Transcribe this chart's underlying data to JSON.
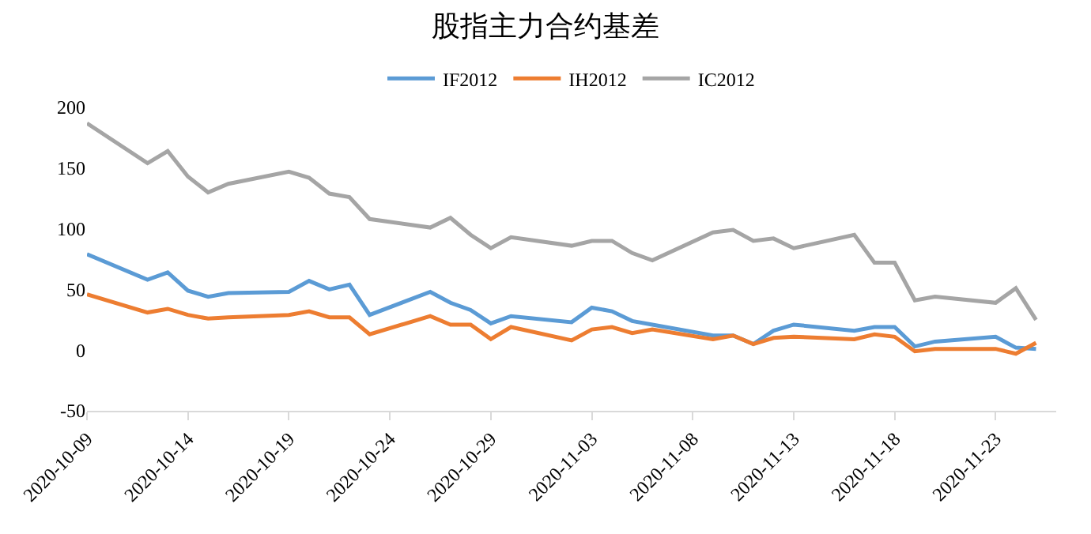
{
  "chart_data": {
    "type": "line",
    "title": "股指主力合约基差",
    "x": [
      "2020-10-09",
      "2020-10-12",
      "2020-10-13",
      "2020-10-14",
      "2020-10-15",
      "2020-10-16",
      "2020-10-19",
      "2020-10-20",
      "2020-10-21",
      "2020-10-22",
      "2020-10-23",
      "2020-10-26",
      "2020-10-27",
      "2020-10-28",
      "2020-10-29",
      "2020-10-30",
      "2020-11-02",
      "2020-11-03",
      "2020-11-04",
      "2020-11-05",
      "2020-11-06",
      "2020-11-09",
      "2020-11-10",
      "2020-11-11",
      "2020-11-12",
      "2020-11-13",
      "2020-11-16",
      "2020-11-17",
      "2020-11-18",
      "2020-11-19",
      "2020-11-20",
      "2020-11-23",
      "2020-11-24",
      "2020-11-25"
    ],
    "series": [
      {
        "name": "IF2012",
        "color": "#5b9bd5",
        "values": [
          79,
          58,
          64,
          49,
          44,
          47,
          48,
          57,
          50,
          54,
          29,
          48,
          39,
          33,
          22,
          28,
          23,
          35,
          32,
          24,
          21,
          12,
          12,
          5,
          16,
          21,
          16,
          19,
          19,
          3,
          7,
          11,
          2,
          1
        ]
      },
      {
        "name": "IH2012",
        "color": "#ed7d31",
        "values": [
          46,
          31,
          34,
          29,
          26,
          27,
          29,
          32,
          27,
          27,
          13,
          28,
          21,
          21,
          9,
          19,
          8,
          17,
          19,
          14,
          17,
          9,
          12,
          5,
          10,
          11,
          9,
          13,
          11,
          -1,
          1,
          1,
          -3,
          6
        ]
      },
      {
        "name": "IC2012",
        "color": "#a5a5a5",
        "values": [
          187,
          154,
          164,
          143,
          130,
          137,
          147,
          142,
          129,
          126,
          108,
          101,
          109,
          95,
          84,
          93,
          86,
          90,
          90,
          80,
          74,
          97,
          99,
          90,
          92,
          84,
          95,
          72,
          72,
          41,
          44,
          39,
          51,
          25
        ]
      }
    ],
    "xlim": [
      "2020-10-09",
      "2020-11-26"
    ],
    "xticks": [
      {
        "value": "2020-10-09",
        "label": "2020-10-09"
      },
      {
        "value": "2020-10-14",
        "label": "2020-10-14"
      },
      {
        "value": "2020-10-19",
        "label": "2020-10-19"
      },
      {
        "value": "2020-10-24",
        "label": "2020-10-24"
      },
      {
        "value": "2020-10-29",
        "label": "2020-10-29"
      },
      {
        "value": "2020-11-03",
        "label": "2020-11-03"
      },
      {
        "value": "2020-11-08",
        "label": "2020-11-08"
      },
      {
        "value": "2020-11-13",
        "label": "2020-11-13"
      },
      {
        "value": "2020-11-18",
        "label": "2020-11-18"
      },
      {
        "value": "2020-11-23",
        "label": "2020-11-23"
      }
    ],
    "ylim": [
      -50,
      200
    ],
    "yticks": [
      -50,
      0,
      50,
      100,
      150,
      200
    ],
    "grid": false,
    "legend": "top",
    "marker": "none",
    "line_style": "solid"
  }
}
